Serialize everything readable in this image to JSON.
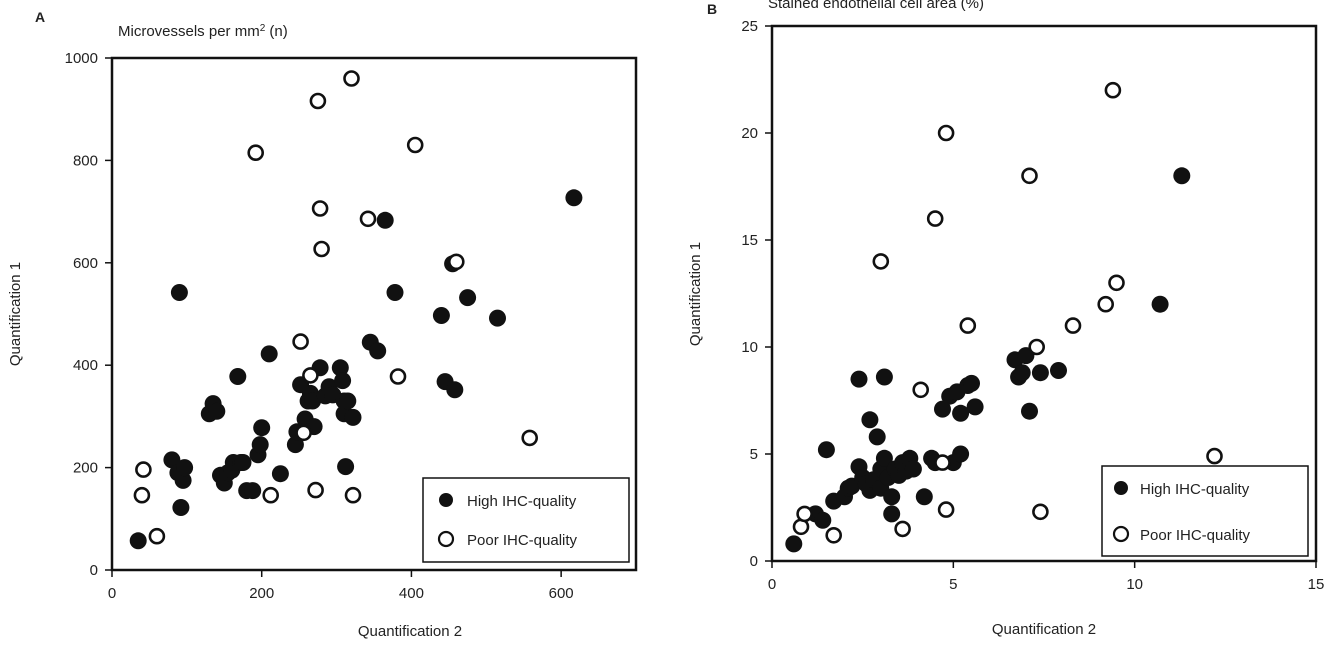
{
  "chart_data": [
    {
      "type": "scatter",
      "panel_label": "A",
      "title": "Microvessels per mm",
      "title_superscript": "2",
      "title_suffix": " (n)",
      "xlabel": "Quantification 2",
      "ylabel": "Quantification 1",
      "xlim": [
        0,
        700
      ],
      "ylim": [
        0,
        1000
      ],
      "xticks": [
        0,
        200,
        400,
        600
      ],
      "yticks": [
        0,
        200,
        400,
        600,
        800,
        1000
      ],
      "grid": false,
      "legend_position": "bottom-right",
      "series": [
        {
          "name": "High IHC-quality",
          "marker": "filled-circle",
          "points": [
            [
              35,
              57
            ],
            [
              80,
              215
            ],
            [
              90,
              542
            ],
            [
              92,
              122
            ],
            [
              88,
              190
            ],
            [
              95,
              175
            ],
            [
              97,
              200
            ],
            [
              130,
              305
            ],
            [
              135,
              325
            ],
            [
              140,
              310
            ],
            [
              145,
              185
            ],
            [
              150,
              170
            ],
            [
              155,
              190
            ],
            [
              160,
              195
            ],
            [
              162,
              210
            ],
            [
              168,
              378
            ],
            [
              172,
              210
            ],
            [
              175,
              210
            ],
            [
              180,
              155
            ],
            [
              188,
              155
            ],
            [
              195,
              225
            ],
            [
              198,
              245
            ],
            [
              200,
              278
            ],
            [
              210,
              422
            ],
            [
              225,
              188
            ],
            [
              245,
              245
            ],
            [
              247,
              270
            ],
            [
              252,
              362
            ],
            [
              258,
              295
            ],
            [
              262,
              330
            ],
            [
              265,
              345
            ],
            [
              268,
              330
            ],
            [
              270,
              280
            ],
            [
              278,
              395
            ],
            [
              285,
              340
            ],
            [
              290,
              358
            ],
            [
              295,
              342
            ],
            [
              305,
              395
            ],
            [
              308,
              370
            ],
            [
              310,
              330
            ],
            [
              310,
              305
            ],
            [
              312,
              202
            ],
            [
              315,
              330
            ],
            [
              322,
              298
            ],
            [
              345,
              445
            ],
            [
              355,
              428
            ],
            [
              365,
              683
            ],
            [
              378,
              542
            ],
            [
              440,
              497
            ],
            [
              445,
              368
            ],
            [
              455,
              598
            ],
            [
              458,
              352
            ],
            [
              475,
              532
            ],
            [
              515,
              492
            ],
            [
              617,
              727
            ]
          ]
        },
        {
          "name": "Poor IHC-quality",
          "marker": "open-circle",
          "points": [
            [
              40,
              146
            ],
            [
              42,
              196
            ],
            [
              60,
              66
            ],
            [
              192,
              815
            ],
            [
              212,
              146
            ],
            [
              252,
              446
            ],
            [
              256,
              268
            ],
            [
              265,
              380
            ],
            [
              272,
              156
            ],
            [
              275,
              916
            ],
            [
              278,
              706
            ],
            [
              280,
              627
            ],
            [
              320,
              960
            ],
            [
              322,
              146
            ],
            [
              342,
              686
            ],
            [
              382,
              378
            ],
            [
              405,
              830
            ],
            [
              460,
              602
            ],
            [
              558,
              258
            ]
          ]
        }
      ]
    },
    {
      "type": "scatter",
      "panel_label": "B",
      "title": "Stained endothelial cell area (%)",
      "xlabel": "Quantification 2",
      "ylabel": "Quantification 1",
      "xlim": [
        0,
        15
      ],
      "ylim": [
        0,
        25
      ],
      "xticks": [
        0,
        5,
        10,
        15
      ],
      "yticks": [
        0,
        5,
        10,
        15,
        20,
        25
      ],
      "grid": false,
      "legend_position": "bottom-right",
      "series": [
        {
          "name": "High IHC-quality",
          "marker": "filled-circle",
          "points": [
            [
              0.6,
              0.8
            ],
            [
              1.2,
              2.2
            ],
            [
              1.4,
              1.9
            ],
            [
              1.5,
              5.2
            ],
            [
              1.7,
              2.8
            ],
            [
              2.0,
              3.0
            ],
            [
              2.1,
              3.4
            ],
            [
              2.2,
              3.5
            ],
            [
              2.4,
              4.4
            ],
            [
              2.4,
              8.5
            ],
            [
              2.5,
              3.9
            ],
            [
              2.6,
              3.6
            ],
            [
              2.7,
              3.3
            ],
            [
              2.7,
              6.6
            ],
            [
              2.8,
              3.8
            ],
            [
              2.9,
              5.8
            ],
            [
              3.0,
              4.3
            ],
            [
              3.0,
              3.4
            ],
            [
              3.1,
              4.8
            ],
            [
              3.1,
              8.6
            ],
            [
              3.2,
              3.9
            ],
            [
              3.3,
              2.2
            ],
            [
              3.3,
              3.0
            ],
            [
              3.4,
              4.3
            ],
            [
              3.5,
              4.0
            ],
            [
              3.6,
              4.6
            ],
            [
              3.7,
              4.2
            ],
            [
              3.8,
              4.8
            ],
            [
              3.9,
              4.3
            ],
            [
              4.2,
              3.0
            ],
            [
              4.4,
              4.8
            ],
            [
              4.5,
              4.6
            ],
            [
              4.7,
              7.1
            ],
            [
              4.9,
              7.7
            ],
            [
              5.0,
              4.6
            ],
            [
              5.1,
              7.9
            ],
            [
              5.2,
              5.0
            ],
            [
              5.2,
              6.9
            ],
            [
              5.4,
              8.2
            ],
            [
              5.5,
              8.3
            ],
            [
              5.6,
              7.2
            ],
            [
              6.7,
              9.4
            ],
            [
              6.8,
              8.6
            ],
            [
              6.9,
              8.8
            ],
            [
              7.0,
              9.6
            ],
            [
              7.1,
              7.0
            ],
            [
              7.4,
              8.8
            ],
            [
              7.9,
              8.9
            ],
            [
              10.7,
              12.0
            ],
            [
              11.3,
              18.0
            ]
          ]
        },
        {
          "name": "Poor IHC-quality",
          "marker": "open-circle",
          "points": [
            [
              0.8,
              1.6
            ],
            [
              0.9,
              2.2
            ],
            [
              1.7,
              1.2
            ],
            [
              3.0,
              14.0
            ],
            [
              3.6,
              1.5
            ],
            [
              4.1,
              8.0
            ],
            [
              4.5,
              16.0
            ],
            [
              4.7,
              4.6
            ],
            [
              4.8,
              2.4
            ],
            [
              4.8,
              20.0
            ],
            [
              5.4,
              11.0
            ],
            [
              7.1,
              18.0
            ],
            [
              7.3,
              10.0
            ],
            [
              7.4,
              2.3
            ],
            [
              8.3,
              11.0
            ],
            [
              9.2,
              12.0
            ],
            [
              9.4,
              22.0
            ],
            [
              9.5,
              13.0
            ],
            [
              12.2,
              4.9
            ]
          ]
        }
      ]
    }
  ]
}
